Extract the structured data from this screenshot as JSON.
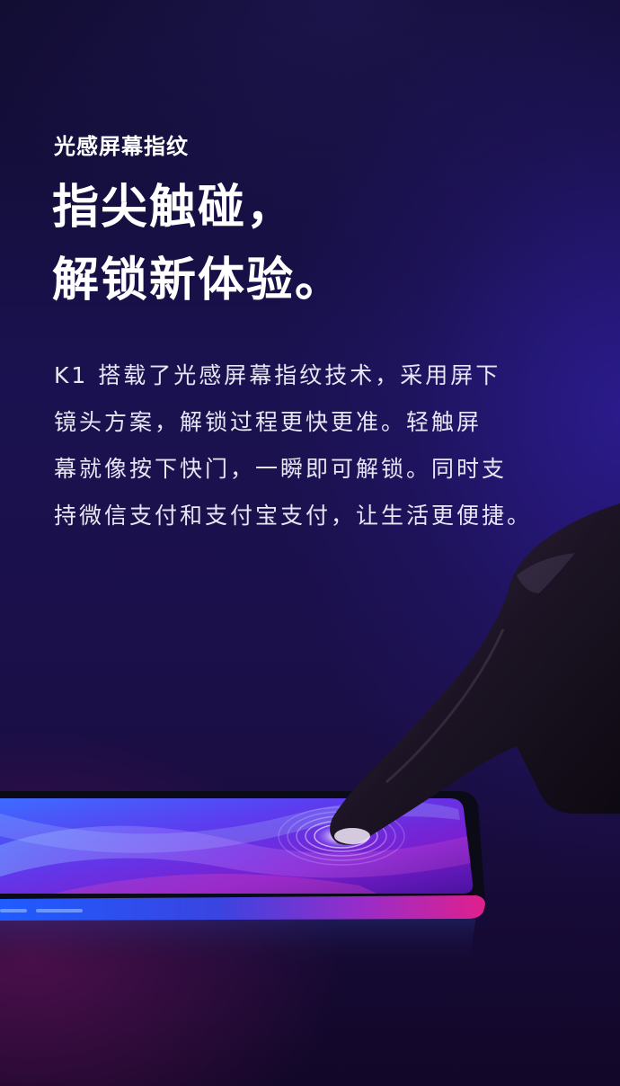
{
  "hero": {
    "subtitle": "光感屏幕指纹",
    "headline_line1": "指尖触碰，",
    "headline_line2": "解锁新体验。"
  },
  "description": {
    "lines": [
      "K1 搭载了光感屏幕指纹技术，采用屏下",
      "镜头方案，解锁过程更快更准。轻触屏",
      "幕就像按下快门，一瞬即可解锁。同时支",
      "持微信支付和支付宝支付，让生活更便捷。"
    ]
  },
  "visual": {
    "phone_icon": "smartphone-icon",
    "fingerprint_icon": "fingerprint-icon",
    "hand_icon": "pointing-hand-icon"
  },
  "colors": {
    "background_top": "#100c2e",
    "background_mid": "#1a1250",
    "accent_blue": "#2d5cff",
    "accent_magenta": "#d0208a",
    "text": "#ffffff"
  }
}
